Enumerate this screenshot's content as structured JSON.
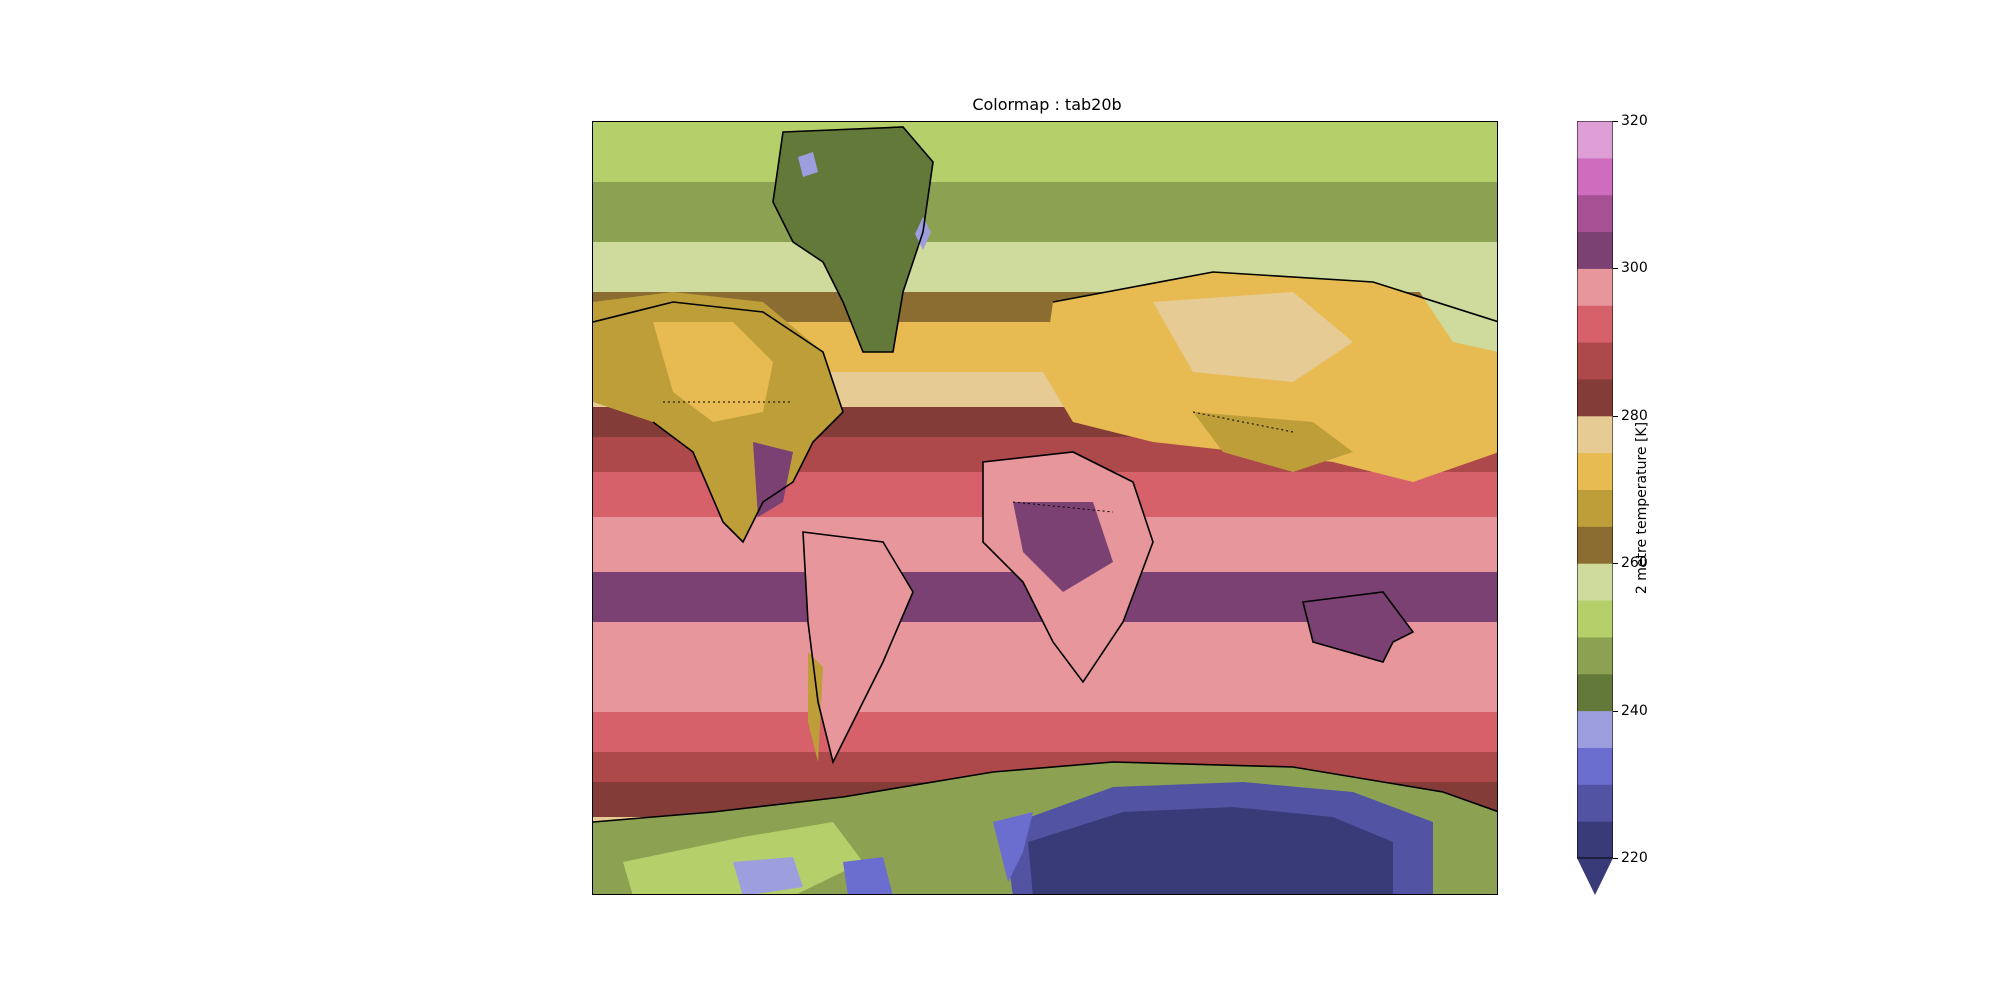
{
  "title": "Colormap : tab20b",
  "colorbar": {
    "label": "2 metre temperature [K]",
    "ticks": [
      "220",
      "240",
      "260",
      "280",
      "300",
      "320"
    ],
    "tick_values": [
      220,
      240,
      260,
      280,
      300,
      320
    ],
    "range": [
      220,
      320
    ],
    "extend": "min",
    "step": 5,
    "colors": [
      "#393b79",
      "#5254a3",
      "#6b6ecf",
      "#9c9ede",
      "#637939",
      "#8ca252",
      "#b5cf6b",
      "#cedb9c",
      "#8c6d31",
      "#bd9e39",
      "#e7ba52",
      "#e7cb94",
      "#843c39",
      "#ad494a",
      "#d6616b",
      "#e7969c",
      "#7b4173",
      "#a55194",
      "#ce6dbd",
      "#de9ed6"
    ]
  },
  "map": {
    "variable": "2 metre temperature",
    "units": "K",
    "projection": "Mercator",
    "coastlines": true,
    "borders": "dotted"
  }
}
